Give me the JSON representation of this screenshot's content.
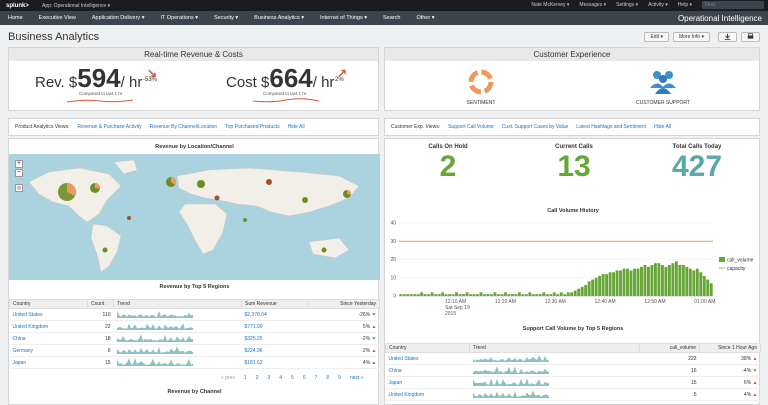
{
  "topbar": {
    "logo": "splunk>",
    "app": "App: Operational Intelligence ▾",
    "user": "Nate McKervey ▾",
    "messages": "Messages ▾",
    "settings": "Settings ▾",
    "activity": "Activity ▾",
    "help": "Help ▾",
    "find_placeholder": "Find"
  },
  "nav": {
    "items": [
      "Home",
      "Executive View",
      "Application Delivery ▾",
      "IT Operations ▾",
      "Security ▾",
      "Business Analytics ▾",
      "Internet of Things ▾",
      "Search",
      "Other ▾"
    ],
    "app_title": "Operational Intelligence"
  },
  "page": {
    "title": "Business Analytics",
    "edit": "Edit ▾",
    "more_info": "More Info ▾"
  },
  "revenue_panel": {
    "title": "Real-time Revenue & Costs",
    "rev_label": "Rev. $",
    "rev_value": "594",
    "rev_unit": "/ hr",
    "rev_change": "-53%",
    "rev_compare": "Compared to last 1 hr",
    "cost_label": "Cost $",
    "cost_value": "664",
    "cost_unit": "/ hr",
    "cost_change": "2%",
    "cost_compare": "Compared to last 1 hr"
  },
  "cx_panel": {
    "title": "Customer Experience",
    "sentiment": "SENTIMENT",
    "support": "CUSTOMER SUPPORT"
  },
  "product_tabs": {
    "label": "Product Analytics Views:",
    "tabs": [
      "Revenue & Purchase Activity",
      "Revenue By Channel/Location",
      "Top Purchased Products",
      "Hide All"
    ]
  },
  "cx_tabs": {
    "label": "Customer Exp. Views:",
    "tabs": [
      "Support Call Volume",
      "Cust. Support Cases by Value",
      "Latest Hashtags and Sentiment",
      "Hide All"
    ]
  },
  "map": {
    "title": "Revenue by Location/Channel",
    "zoom_in": "+",
    "zoom_out": "−"
  },
  "regions": {
    "title": "Revenue by Top 5 Regions",
    "headers": [
      "Country",
      "Count",
      "Trend",
      "Sum Revenue",
      "Since Yesterday"
    ],
    "rows": [
      {
        "country": "United States",
        "count": "110",
        "sum": "$2,378.04",
        "since": "-26%",
        "dir": "dn"
      },
      {
        "country": "United Kingdom",
        "count": "22",
        "sum": "$771.90",
        "since": "5%",
        "dir": "up"
      },
      {
        "country": "China",
        "count": "18",
        "sum": "$325.25",
        "since": "-2%",
        "dir": "dn"
      },
      {
        "country": "Germany",
        "count": "6",
        "sum": "$224.96",
        "since": "2%",
        "dir": "up"
      },
      {
        "country": "Japan",
        "count": "15",
        "sum": "$181.63",
        "since": "4%",
        "dir": "up"
      }
    ],
    "pager": [
      "« prev",
      "1",
      "2",
      "3",
      "4",
      "5",
      "6",
      "7",
      "8",
      "9",
      "next »"
    ]
  },
  "channel": {
    "title": "Revenue by Channel"
  },
  "calls": {
    "on_hold_label": "Calls On Hold",
    "on_hold": "2",
    "current_label": "Current Calls",
    "current": "13",
    "today_label": "Total Calls Today",
    "today": "427"
  },
  "support_table": {
    "title": "Support Call Volume by Top 5 Regions",
    "headers": [
      "Country",
      "Trend",
      "call_volume",
      "Since 1 Hour Ago"
    ],
    "rows": [
      {
        "country": "United States",
        "volume": "222",
        "since": "38%",
        "dir": "up"
      },
      {
        "country": "China",
        "volume": "16",
        "since": "-4%",
        "dir": "dn"
      },
      {
        "country": "Japan",
        "volume": "15",
        "since": "6%",
        "dir": "up"
      },
      {
        "country": "United Kingdom",
        "volume": "5",
        "since": "4%",
        "dir": "up"
      }
    ]
  },
  "colors": {
    "green": "#65a637",
    "orange": "#ec9960",
    "teal": "#5ba8a8",
    "red": "#d6563c",
    "link": "#1e73be"
  },
  "chart_data": {
    "type": "bar",
    "title": "Call Volume History",
    "xlabel": "",
    "ylabel": "",
    "ylim": [
      0,
      40
    ],
    "yticks": [
      0,
      10,
      20,
      30,
      40
    ],
    "xticks": [
      "12:10 AM\nSat Sep 19\n2015",
      "12:20 AM",
      "12:30 AM",
      "12:40 AM",
      "12:50 AM",
      "01:00 AM"
    ],
    "series": [
      {
        "name": "call_volume",
        "type": "bar",
        "values": [
          1,
          1,
          1,
          1,
          1,
          1,
          2,
          1,
          1,
          2,
          1,
          1,
          2,
          1,
          1,
          1,
          2,
          1,
          1,
          2,
          1,
          1,
          1,
          2,
          1,
          1,
          1,
          2,
          1,
          1,
          2,
          1,
          1,
          1,
          2,
          1,
          1,
          2,
          1,
          1,
          1,
          2,
          1,
          1,
          2,
          1,
          2,
          1,
          2,
          2,
          3,
          4,
          5,
          6,
          8,
          9,
          10,
          11,
          12,
          12,
          13,
          13,
          14,
          14,
          15,
          15,
          14,
          15,
          15,
          16,
          17,
          16,
          17,
          18,
          18,
          17,
          16,
          17,
          18,
          19,
          17,
          17,
          16,
          15,
          14,
          15,
          13,
          11,
          9,
          7
        ]
      },
      {
        "name": "capacity",
        "type": "line",
        "values": [
          30
        ]
      }
    ],
    "legend": "right"
  }
}
